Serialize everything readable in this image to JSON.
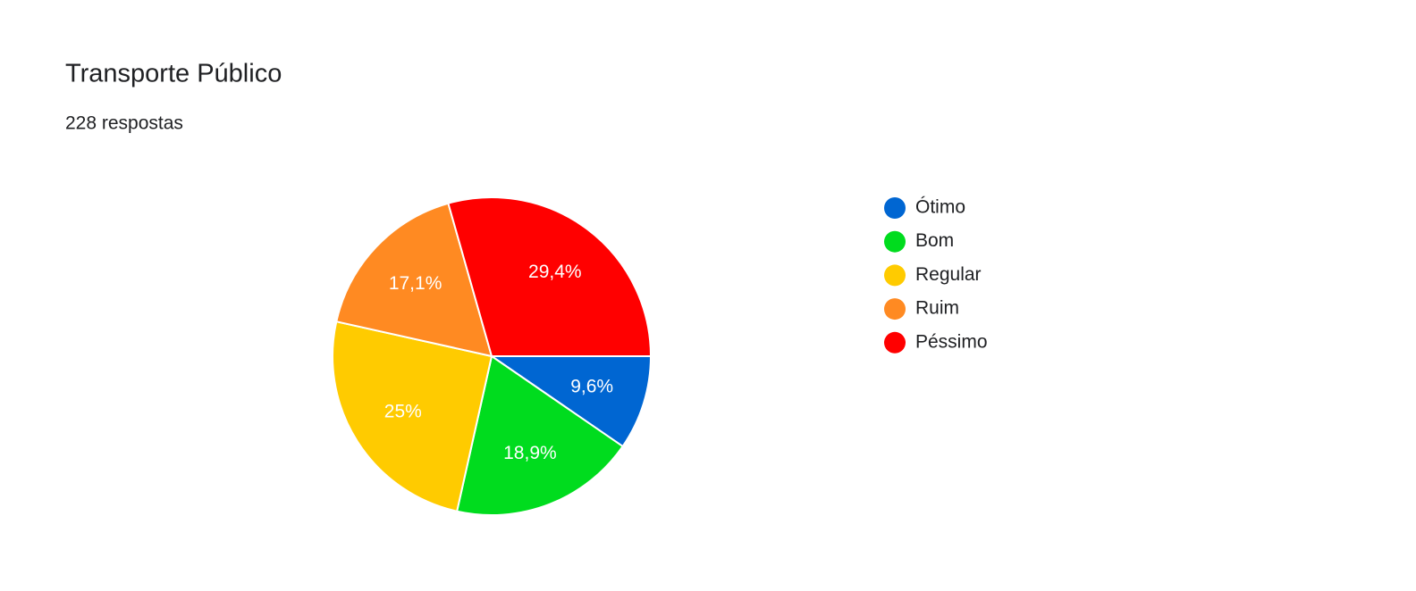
{
  "chart_data": {
    "type": "pie",
    "title": "Transporte Público",
    "subtitle": "228 respostas",
    "categories": [
      "Ótimo",
      "Bom",
      "Regular",
      "Ruim",
      "Péssimo"
    ],
    "values": [
      9.6,
      18.9,
      25,
      17.1,
      29.4
    ],
    "value_labels": [
      "9,6%",
      "18,9%",
      "25%",
      "17,1%",
      "29,4%"
    ],
    "colors": [
      "#0066d2",
      "#00dc1e",
      "#ffcb00",
      "#ff8a22",
      "#ff0000"
    ]
  }
}
